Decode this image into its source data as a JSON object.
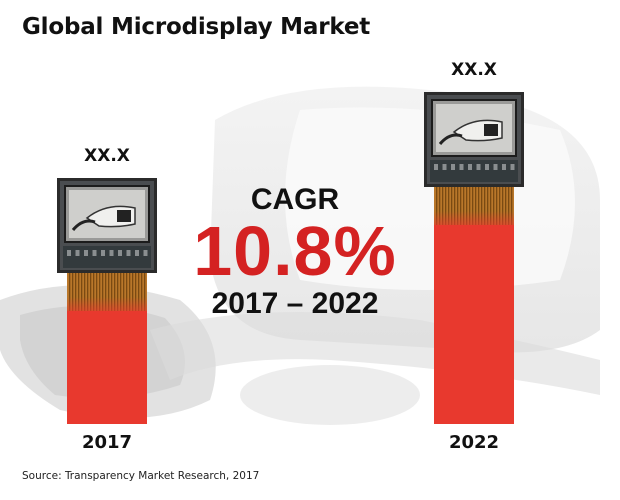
{
  "chart_data": {
    "type": "bar",
    "title": "Global Microdisplay Market",
    "categories": [
      "2017",
      "2022"
    ],
    "values": [
      1.0,
      1.35
    ],
    "value_labels": [
      "XX.X",
      "XX.X"
    ],
    "ylim": [
      0,
      1.35
    ],
    "bar_color": "#e8392e",
    "annotation": {
      "label": "CAGR",
      "value": "10.8%",
      "period": "2017 – 2022",
      "value_color": "#d42222"
    },
    "source": "Source: Transparency Market Research, 2017",
    "grid": false,
    "legend": "none"
  }
}
